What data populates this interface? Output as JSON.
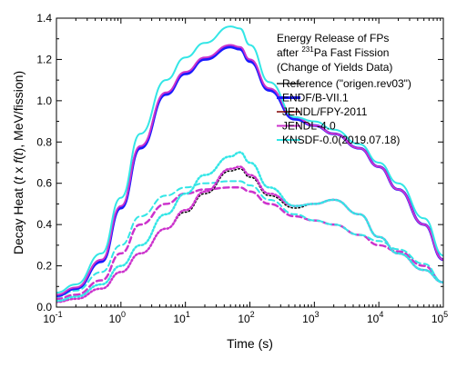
{
  "chart_data": {
    "type": "line",
    "xscale": "log",
    "xlim": [
      0.1,
      100000
    ],
    "ylim": [
      0.0,
      1.4
    ],
    "xlabel": "Time (s)",
    "ylabel": "Decay Heat (t x f(t), MeV/fission)",
    "ylabel_parts": [
      "Decay Heat (",
      "t",
      " x ",
      "f",
      "(",
      "t",
      "), MeV/fission)"
    ],
    "x_ticks": [
      {
        "value": 0.1,
        "base": "10",
        "exp": "-1"
      },
      {
        "value": 1,
        "base": "10",
        "exp": "0"
      },
      {
        "value": 10,
        "base": "10",
        "exp": "1"
      },
      {
        "value": 100,
        "base": "10",
        "exp": "2"
      },
      {
        "value": 1000,
        "base": "10",
        "exp": "3"
      },
      {
        "value": 10000,
        "base": "10",
        "exp": "4"
      },
      {
        "value": 100000,
        "base": "10",
        "exp": "5"
      }
    ],
    "y_ticks": [
      "0.0",
      "0.2",
      "0.4",
      "0.6",
      "0.8",
      "1.0",
      "1.2",
      "1.4"
    ],
    "legend": {
      "placement": "top-right",
      "title_lines": [
        {
          "text": "Energy Release of FPs"
        },
        {
          "pre": "after ",
          "sup": "231",
          "post": "Pa Fast Fission"
        },
        {
          "text": "(Change of Yields Data)"
        }
      ],
      "entries": [
        {
          "label": "Reference (\"origen.rev03\")",
          "color": "#000000",
          "width": 1.2
        },
        {
          "label": "ENDF/B-VII.1",
          "color": "#1a1aff",
          "width": 3
        },
        {
          "label": "JENDL/FPY-2011",
          "color": "#800000",
          "width": 1.5
        },
        {
          "label": "JENDL-4.0",
          "color": "#cc33cc",
          "width": 2
        },
        {
          "label": "KNSDF-0.0(2019.07.18)",
          "color": "#33e6e6",
          "width": 2
        }
      ]
    },
    "series": [
      {
        "group": "total",
        "style": "solid",
        "color": "#000000",
        "width": 1.2,
        "x": [
          0.1,
          0.2,
          0.5,
          1,
          2,
          5,
          10,
          20,
          50,
          70,
          100,
          200,
          500,
          1000,
          2000,
          5000,
          10000,
          20000,
          50000,
          100000
        ],
        "y": [
          0.055,
          0.09,
          0.22,
          0.48,
          0.77,
          1.03,
          1.13,
          1.2,
          1.26,
          1.25,
          1.19,
          1.05,
          0.91,
          0.88,
          0.84,
          0.77,
          0.68,
          0.57,
          0.4,
          0.23
        ]
      },
      {
        "group": "total",
        "style": "solid",
        "color": "#1a1aff",
        "width": 3,
        "x": [
          0.1,
          0.2,
          0.5,
          1,
          2,
          5,
          10,
          20,
          50,
          70,
          100,
          200,
          500,
          1000,
          2000,
          5000,
          10000,
          20000,
          50000,
          100000
        ],
        "y": [
          0.055,
          0.09,
          0.22,
          0.48,
          0.77,
          1.03,
          1.13,
          1.2,
          1.26,
          1.25,
          1.19,
          1.05,
          0.91,
          0.88,
          0.84,
          0.77,
          0.68,
          0.57,
          0.4,
          0.23
        ]
      },
      {
        "group": "total",
        "style": "solid",
        "color": "#cc33cc",
        "width": 2,
        "x": [
          0.1,
          0.2,
          0.5,
          1,
          2,
          5,
          10,
          20,
          50,
          70,
          100,
          200,
          500,
          1000,
          2000,
          5000,
          10000,
          20000,
          50000,
          100000
        ],
        "y": [
          0.06,
          0.095,
          0.23,
          0.49,
          0.78,
          1.04,
          1.14,
          1.21,
          1.27,
          1.26,
          1.2,
          1.06,
          0.92,
          0.88,
          0.84,
          0.77,
          0.68,
          0.57,
          0.4,
          0.23
        ]
      },
      {
        "group": "total",
        "style": "solid",
        "color": "#33e6e6",
        "width": 2,
        "x": [
          0.1,
          0.2,
          0.5,
          1,
          2,
          5,
          10,
          20,
          50,
          70,
          100,
          200,
          500,
          1000,
          2000,
          5000,
          10000,
          20000,
          50000,
          100000
        ],
        "y": [
          0.07,
          0.11,
          0.26,
          0.53,
          0.84,
          1.1,
          1.21,
          1.28,
          1.36,
          1.35,
          1.27,
          1.09,
          0.92,
          0.9,
          0.86,
          0.79,
          0.7,
          0.6,
          0.43,
          0.25
        ]
      },
      {
        "group": "beta",
        "style": "dotted",
        "color": "#000000",
        "width": 1.5,
        "x": [
          0.1,
          0.2,
          0.5,
          1,
          2,
          5,
          10,
          20,
          50,
          70,
          100,
          200,
          500,
          1000,
          2000,
          5000,
          10000,
          20000,
          50000,
          100000
        ],
        "y": [
          0.025,
          0.04,
          0.09,
          0.17,
          0.26,
          0.38,
          0.46,
          0.55,
          0.66,
          0.67,
          0.63,
          0.54,
          0.48,
          0.5,
          0.52,
          0.45,
          0.34,
          0.26,
          0.18,
          0.12
        ]
      },
      {
        "group": "beta",
        "style": "dotted",
        "color": "#cc33cc",
        "width": 2.5,
        "x": [
          0.1,
          0.2,
          0.5,
          1,
          2,
          5,
          10,
          20,
          50,
          70,
          100,
          200,
          500,
          1000,
          2000,
          5000,
          10000,
          20000,
          50000,
          100000
        ],
        "y": [
          0.025,
          0.04,
          0.09,
          0.17,
          0.26,
          0.38,
          0.47,
          0.56,
          0.67,
          0.68,
          0.64,
          0.55,
          0.49,
          0.5,
          0.52,
          0.45,
          0.34,
          0.26,
          0.18,
          0.12
        ]
      },
      {
        "group": "beta",
        "style": "dotted",
        "color": "#33e6e6",
        "width": 2.5,
        "x": [
          0.1,
          0.2,
          0.5,
          1,
          2,
          5,
          10,
          20,
          50,
          70,
          100,
          200,
          500,
          1000,
          2000,
          5000,
          10000,
          20000,
          50000,
          100000
        ],
        "y": [
          0.03,
          0.05,
          0.11,
          0.2,
          0.3,
          0.45,
          0.55,
          0.64,
          0.73,
          0.75,
          0.7,
          0.58,
          0.49,
          0.5,
          0.52,
          0.45,
          0.34,
          0.26,
          0.18,
          0.12
        ]
      },
      {
        "group": "gamma",
        "style": "dashed",
        "color": "#000000",
        "width": 1.5,
        "x": [
          0.1,
          0.2,
          0.5,
          1,
          2,
          5,
          10,
          20,
          50,
          70,
          100,
          200,
          500,
          1000,
          2000,
          5000,
          10000,
          20000,
          50000,
          100000
        ],
        "y": [
          0.04,
          0.06,
          0.13,
          0.26,
          0.4,
          0.5,
          0.55,
          0.57,
          0.58,
          0.58,
          0.56,
          0.5,
          0.44,
          0.42,
          0.4,
          0.35,
          0.3,
          0.27,
          0.2,
          0.12
        ]
      },
      {
        "group": "gamma",
        "style": "dashed",
        "color": "#cc33cc",
        "width": 2.5,
        "x": [
          0.1,
          0.2,
          0.5,
          1,
          2,
          5,
          10,
          20,
          50,
          70,
          100,
          200,
          500,
          1000,
          2000,
          5000,
          10000,
          20000,
          50000,
          100000
        ],
        "y": [
          0.04,
          0.06,
          0.13,
          0.26,
          0.4,
          0.5,
          0.55,
          0.57,
          0.58,
          0.58,
          0.56,
          0.5,
          0.44,
          0.42,
          0.4,
          0.35,
          0.3,
          0.27,
          0.2,
          0.12
        ]
      },
      {
        "group": "gamma",
        "style": "dashed",
        "color": "#33e6e6",
        "width": 2,
        "x": [
          0.1,
          0.2,
          0.5,
          1,
          2,
          5,
          10,
          20,
          50,
          70,
          100,
          200,
          500,
          1000,
          2000,
          5000,
          10000,
          20000,
          50000,
          100000
        ],
        "y": [
          0.05,
          0.08,
          0.17,
          0.3,
          0.44,
          0.54,
          0.58,
          0.6,
          0.61,
          0.61,
          0.59,
          0.52,
          0.45,
          0.42,
          0.4,
          0.35,
          0.32,
          0.28,
          0.21,
          0.12
        ]
      }
    ],
    "grid": false
  }
}
